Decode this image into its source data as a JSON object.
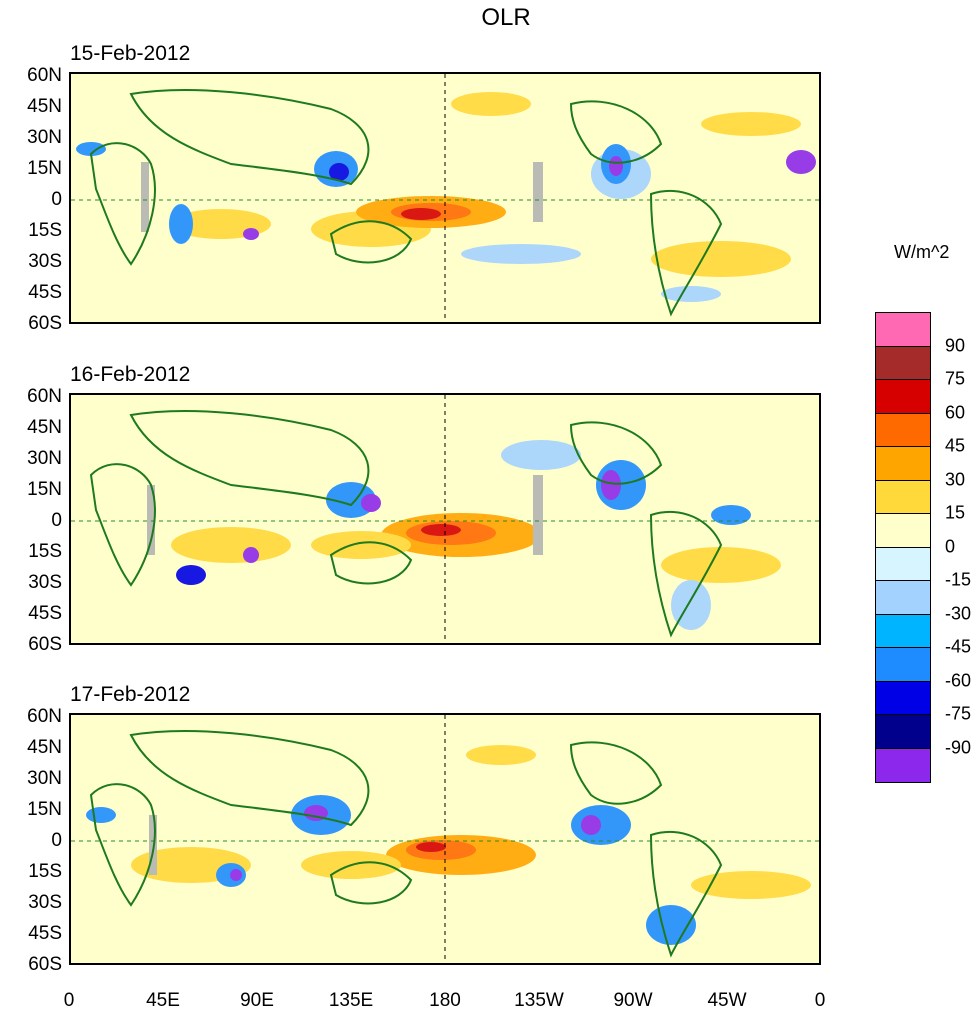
{
  "title": "OLR",
  "panels": [
    {
      "date": "15-Feb-2012"
    },
    {
      "date": "16-Feb-2012"
    },
    {
      "date": "17-Feb-2012"
    }
  ],
  "lat_labels": [
    "60N",
    "45N",
    "30N",
    "15N",
    "0",
    "15S",
    "30S",
    "45S",
    "60S"
  ],
  "lon_labels": [
    "0",
    "45E",
    "90E",
    "135E",
    "180",
    "135W",
    "90W",
    "45W",
    "0"
  ],
  "colorbar": {
    "units": "W/m^2",
    "labels": [
      "90",
      "75",
      "60",
      "45",
      "30",
      "15",
      "0",
      "-15",
      "-30",
      "-45",
      "-60",
      "-75",
      "-90"
    ],
    "colors": [
      "#ff69b4",
      "#a52a2a",
      "#d70000",
      "#ff6a00",
      "#ffa500",
      "#ffd83a",
      "#ffffcc",
      "#d7f5ff",
      "#a4d2ff",
      "#00b4ff",
      "#1e8cff",
      "#0000e6",
      "#00008c",
      "#8c28eb"
    ]
  }
}
